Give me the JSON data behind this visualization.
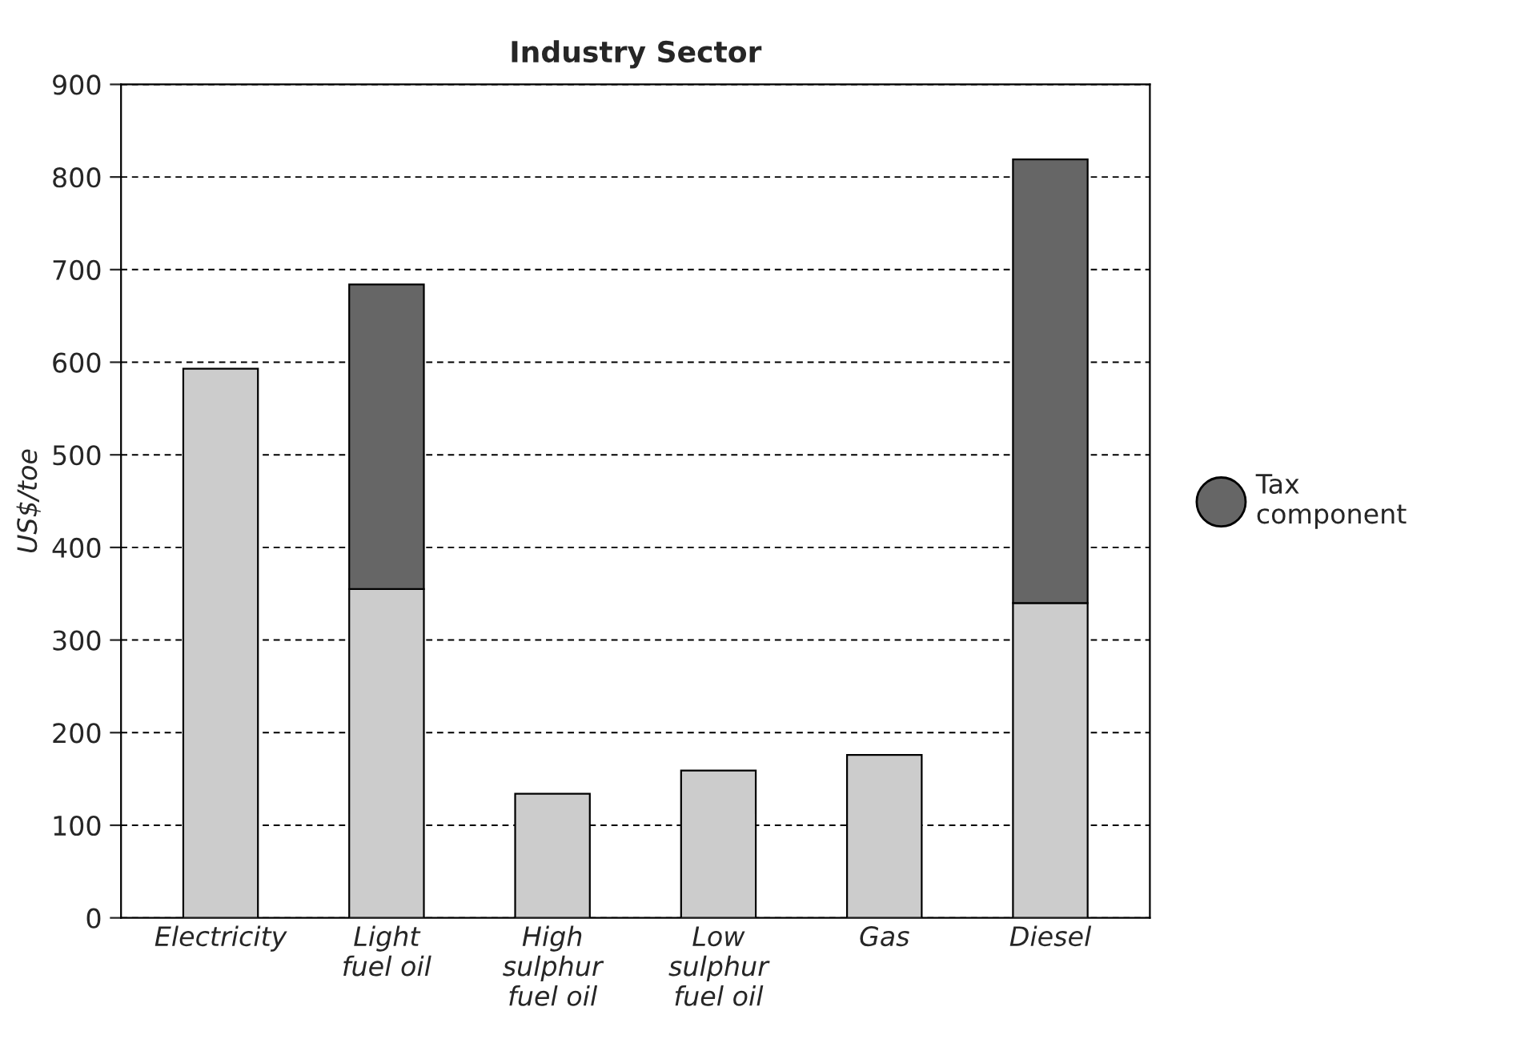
{
  "chart_data": {
    "type": "bar",
    "title": "Industry Sector",
    "ylabel": "US$/toe",
    "categories": [
      "Electricity",
      "Light\nfuel oil",
      "High\nsulphur\nfuel oil",
      "Low\nsulphur\nfuel oil",
      "Gas",
      "Diesel"
    ],
    "stacked": true,
    "series": [
      {
        "color": "#cccccc",
        "values": [
          593,
          355,
          134,
          159,
          176,
          340
        ]
      },
      {
        "name": "Tax component",
        "color": "#666666",
        "values": [
          null,
          329,
          null,
          null,
          null,
          479
        ]
      }
    ],
    "ylim": [
      0,
      900
    ],
    "yticks": [
      0,
      100,
      200,
      300,
      400,
      500,
      600,
      700,
      800,
      900
    ],
    "grid": "y",
    "line_style": "dashed",
    "legend": "right",
    "marker": "circle"
  }
}
